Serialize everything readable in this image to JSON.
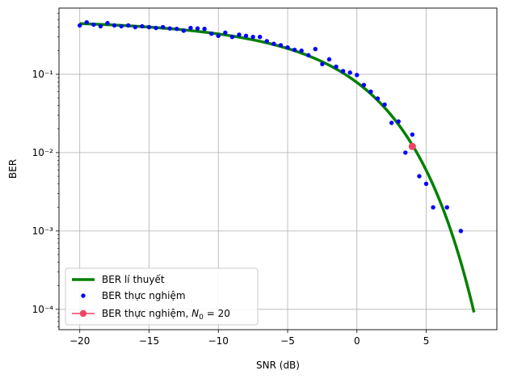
{
  "chart_data": {
    "type": "line",
    "xlabel": "SNR (dB)",
    "ylabel": "BER",
    "xlim": [
      -21.5,
      10.1
    ],
    "ylim": [
      5.5e-05,
      0.7
    ],
    "yscale": "log",
    "grid": true,
    "legend_position": "lower-left",
    "x_ticks": [
      -20,
      -15,
      -10,
      -5,
      0,
      5
    ],
    "x_tick_labels": [
      "−20",
      "−15",
      "−10",
      "−5",
      "0",
      "5"
    ],
    "y_ticks": [
      0.0001,
      0.001,
      0.01,
      0.1
    ],
    "y_tick_labels": [
      "10⁻⁴",
      "10⁻³",
      "10⁻²",
      "10⁻¹"
    ],
    "series": [
      {
        "name": "BER lí thuyết",
        "kind": "line",
        "color": "#008000",
        "function": "0.5*erfc(sqrt(10^(SNR/10)))",
        "x_range": [
          -20,
          8.45
        ]
      },
      {
        "name": "BER thực nghiệm",
        "kind": "scatter",
        "color": "#0000ff",
        "x": [
          -20,
          -19.5,
          -19,
          -18.5,
          -18,
          -17.5,
          -17,
          -16.5,
          -16,
          -15.5,
          -15,
          -14.5,
          -14,
          -13.5,
          -13,
          -12.5,
          -12,
          -11.5,
          -11,
          -10.5,
          -10,
          -9.5,
          -9,
          -8.5,
          -8,
          -7.5,
          -7,
          -6.5,
          -6,
          -5.5,
          -5,
          -4.5,
          -4,
          -3.5,
          -3,
          -2.5,
          -2,
          -1.5,
          -1,
          -0.5,
          0,
          0.5,
          1,
          1.5,
          2,
          2.5,
          3,
          3.5,
          4,
          4.5,
          5,
          5.5,
          6.5,
          7.5
        ],
        "y": [
          0.42,
          0.46,
          0.43,
          0.41,
          0.45,
          0.42,
          0.41,
          0.42,
          0.4,
          0.41,
          0.4,
          0.39,
          0.4,
          0.385,
          0.38,
          0.36,
          0.39,
          0.385,
          0.38,
          0.33,
          0.31,
          0.34,
          0.3,
          0.32,
          0.31,
          0.3,
          0.3,
          0.265,
          0.245,
          0.235,
          0.22,
          0.205,
          0.2,
          0.175,
          0.21,
          0.135,
          0.155,
          0.125,
          0.11,
          0.105,
          0.098,
          0.073,
          0.06,
          0.049,
          0.041,
          0.024,
          0.025,
          0.01,
          0.017,
          0.005,
          0.004,
          0.002,
          0.002,
          0.001
        ]
      },
      {
        "name": "BER thực nghiệm, N0 = 20",
        "legend_prefix": "BER thực nghiệm, ",
        "legend_symbol": "N",
        "legend_subscript": "0",
        "legend_suffix": " = 20",
        "kind": "marker",
        "color": "#ee4466",
        "x": [
          4
        ],
        "y": [
          0.012
        ]
      }
    ]
  }
}
